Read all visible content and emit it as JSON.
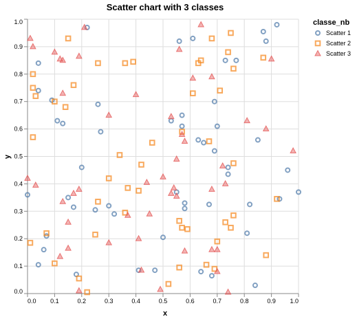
{
  "chart_data": {
    "type": "scatter",
    "title": "Scatter chart with 3 classes",
    "xlabel": "x",
    "ylabel": "y",
    "xlim": [
      0,
      1
    ],
    "ylim": [
      0,
      1
    ],
    "grid": true,
    "x_ticks": [
      "0.0",
      "0.1",
      "0.2",
      "0.3",
      "0.4",
      "0.5",
      "0.6",
      "0.7",
      "0.8",
      "0.9",
      "1.0"
    ],
    "y_ticks": [
      "0.0",
      "0.1",
      "0.2",
      "0.3",
      "0.4",
      "0.5",
      "0.6",
      "0.7",
      "0.8",
      "0.9",
      "1.0"
    ],
    "legend": {
      "title": "classe_nb",
      "position": "top-right"
    },
    "series": [
      {
        "name": "Scatter 1",
        "shape": "circle",
        "color": "#4c78a8",
        "points": [
          [
            0.22,
            0.97
          ],
          [
            0.92,
            0.98
          ],
          [
            0.87,
            0.955
          ],
          [
            0.88,
            0.92
          ],
          [
            0.56,
            0.92
          ],
          [
            0.61,
            0.93
          ],
          [
            0.73,
            0.85
          ],
          [
            0.77,
            0.85
          ],
          [
            0.04,
            0.84
          ],
          [
            0.04,
            0.74
          ],
          [
            0.09,
            0.705
          ],
          [
            0.69,
            0.7
          ],
          [
            0.26,
            0.69
          ],
          [
            0.53,
            0.63
          ],
          [
            0.11,
            0.63
          ],
          [
            0.13,
            0.62
          ],
          [
            0.57,
            0.65
          ],
          [
            0.57,
            0.61
          ],
          [
            0.7,
            0.61
          ],
          [
            0.27,
            0.59
          ],
          [
            0.85,
            0.56
          ],
          [
            0.65,
            0.55
          ],
          [
            0.69,
            0.52
          ],
          [
            0.63,
            0.56
          ],
          [
            0.2,
            0.46
          ],
          [
            0.74,
            0.46
          ],
          [
            0.96,
            0.45
          ],
          [
            0.74,
            0.435
          ],
          [
            0.55,
            0.37
          ],
          [
            0.93,
            0.345
          ],
          [
            0.15,
            0.35
          ],
          [
            0.0,
            0.36
          ],
          [
            1.0,
            0.37
          ],
          [
            0.58,
            0.33
          ],
          [
            0.82,
            0.325
          ],
          [
            0.3,
            0.32
          ],
          [
            0.17,
            0.315
          ],
          [
            0.58,
            0.31
          ],
          [
            0.67,
            0.325
          ],
          [
            0.25,
            0.305
          ],
          [
            0.32,
            0.29
          ],
          [
            0.81,
            0.22
          ],
          [
            0.07,
            0.21
          ],
          [
            0.5,
            0.205
          ],
          [
            0.06,
            0.16
          ],
          [
            0.04,
            0.105
          ],
          [
            0.41,
            0.085
          ],
          [
            0.47,
            0.085
          ],
          [
            0.68,
            0.065
          ],
          [
            0.64,
            0.08
          ],
          [
            0.18,
            0.07
          ],
          [
            0.84,
            0.03
          ]
        ]
      },
      {
        "name": "Scatter 2",
        "shape": "square",
        "color": "#f58518",
        "points": [
          [
            0.15,
            0.93
          ],
          [
            0.68,
            0.93
          ],
          [
            0.75,
            0.95
          ],
          [
            0.74,
            0.88
          ],
          [
            0.87,
            0.86
          ],
          [
            0.63,
            0.84
          ],
          [
            0.64,
            0.85
          ],
          [
            0.26,
            0.84
          ],
          [
            0.36,
            0.84
          ],
          [
            0.39,
            0.845
          ],
          [
            0.76,
            0.82
          ],
          [
            0.02,
            0.8
          ],
          [
            0.17,
            0.76
          ],
          [
            0.02,
            0.75
          ],
          [
            0.03,
            0.72
          ],
          [
            0.71,
            0.74
          ],
          [
            0.61,
            0.73
          ],
          [
            0.1,
            0.7
          ],
          [
            0.14,
            0.68
          ],
          [
            0.57,
            0.59
          ],
          [
            0.02,
            0.57
          ],
          [
            0.67,
            0.555
          ],
          [
            0.46,
            0.55
          ],
          [
            0.34,
            0.505
          ],
          [
            0.42,
            0.47
          ],
          [
            0.76,
            0.475
          ],
          [
            0.3,
            0.42
          ],
          [
            0.37,
            0.385
          ],
          [
            0.41,
            0.375
          ],
          [
            0.92,
            0.345
          ],
          [
            0.26,
            0.335
          ],
          [
            0.36,
            0.295
          ],
          [
            0.76,
            0.285
          ],
          [
            0.56,
            0.265
          ],
          [
            0.73,
            0.26
          ],
          [
            0.75,
            0.24
          ],
          [
            0.57,
            0.24
          ],
          [
            0.59,
            0.235
          ],
          [
            0.07,
            0.22
          ],
          [
            0.25,
            0.215
          ],
          [
            0.7,
            0.19
          ],
          [
            0.01,
            0.185
          ],
          [
            0.88,
            0.14
          ],
          [
            0.66,
            0.105
          ],
          [
            0.1,
            0.11
          ],
          [
            0.56,
            0.095
          ],
          [
            0.69,
            0.09
          ],
          [
            0.19,
            0.055
          ],
          [
            0.52,
            0.035
          ],
          [
            0.22,
            0.005
          ]
        ]
      },
      {
        "name": "Scatter 3",
        "shape": "triangle",
        "color": "#e45756",
        "points": [
          [
            0.01,
            0.93
          ],
          [
            0.02,
            0.9
          ],
          [
            0.21,
            0.97
          ],
          [
            0.64,
            0.98
          ],
          [
            0.56,
            0.89
          ],
          [
            0.1,
            0.88
          ],
          [
            0.19,
            0.865
          ],
          [
            0.12,
            0.855
          ],
          [
            0.13,
            0.85
          ],
          [
            0.9,
            0.855
          ],
          [
            0.61,
            0.785
          ],
          [
            0.68,
            0.79
          ],
          [
            0.4,
            0.725
          ],
          [
            0.13,
            0.73
          ],
          [
            0.3,
            0.65
          ],
          [
            0.53,
            0.645
          ],
          [
            0.81,
            0.63
          ],
          [
            0.88,
            0.6
          ],
          [
            0.57,
            0.58
          ],
          [
            0.58,
            0.555
          ],
          [
            0.55,
            0.49
          ],
          [
            0.98,
            0.52
          ],
          [
            0.72,
            0.465
          ],
          [
            0.73,
            0.4
          ],
          [
            0.0,
            0.42
          ],
          [
            0.03,
            0.395
          ],
          [
            0.44,
            0.405
          ],
          [
            0.5,
            0.425
          ],
          [
            0.19,
            0.38
          ],
          [
            0.54,
            0.385
          ],
          [
            0.53,
            0.365
          ],
          [
            0.55,
            0.355
          ],
          [
            0.17,
            0.365
          ],
          [
            0.68,
            0.38
          ],
          [
            0.13,
            0.335
          ],
          [
            0.45,
            0.29
          ],
          [
            0.37,
            0.285
          ],
          [
            0.15,
            0.26
          ],
          [
            0.41,
            0.2
          ],
          [
            0.3,
            0.185
          ],
          [
            0.15,
            0.165
          ],
          [
            0.58,
            0.155
          ],
          [
            0.68,
            0.16
          ],
          [
            0.7,
            0.16
          ],
          [
            0.12,
            0.135
          ],
          [
            0.42,
            0.085
          ],
          [
            0.7,
            0.08
          ],
          [
            0.19,
            0.01
          ],
          [
            0.49,
            0.015
          ],
          [
            0.74,
            0.005
          ]
        ]
      }
    ]
  }
}
